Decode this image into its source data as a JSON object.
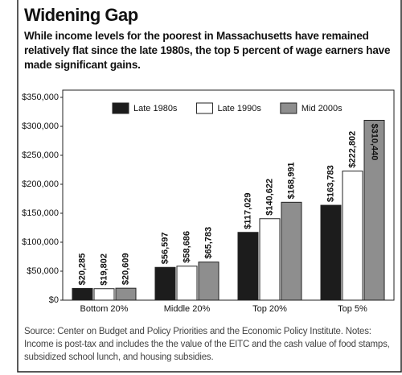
{
  "chart_data": {
    "type": "bar",
    "title": "Widening Gap",
    "subtitle": "While income levels for the poorest in Massachusetts have remained relatively flat since the late 1980s, the top 5 percent of wage earners have made significant gains.",
    "source": "Source: Center on Budget and Policy Priorities and the Economic Policy Institute. Notes: Income is post-tax and includes the the value of the EITC and the cash value of food stamps, subsidized school lunch, and housing subsidies.",
    "categories": [
      "Bottom 20%",
      "Middle 20%",
      "Top 20%",
      "Top 5%"
    ],
    "series": [
      {
        "name": "Late 1980s",
        "color": "#1c1c1c",
        "values": [
          20285,
          56597,
          117029,
          163783
        ],
        "value_labels": [
          "$20,285",
          "$56,597",
          "$117,029",
          "$163,783"
        ]
      },
      {
        "name": "Late 1990s",
        "color": "#ffffff",
        "values": [
          19802,
          58686,
          140622,
          222802
        ],
        "value_labels": [
          "$19,802",
          "$58,686",
          "$140,622",
          "$222,802"
        ]
      },
      {
        "name": "Mid 2000s",
        "color": "#8e8e8e",
        "values": [
          20609,
          65783,
          168991,
          310440
        ],
        "value_labels": [
          "$20,609",
          "$65,783",
          "$168,991",
          "$310,440"
        ]
      }
    ],
    "ylim": [
      0,
      350000
    ],
    "yticks": [
      {
        "value": 0,
        "label": "$0"
      },
      {
        "value": 50000,
        "label": "$50,000"
      },
      {
        "value": 100000,
        "label": "$100,000"
      },
      {
        "value": 150000,
        "label": "$150,000"
      },
      {
        "value": 200000,
        "label": "$200,000"
      },
      {
        "value": 250000,
        "label": "$250,000"
      },
      {
        "value": 300000,
        "label": "$300,000"
      },
      {
        "value": 350000,
        "label": "$350,000"
      }
    ],
    "legend": "top"
  }
}
